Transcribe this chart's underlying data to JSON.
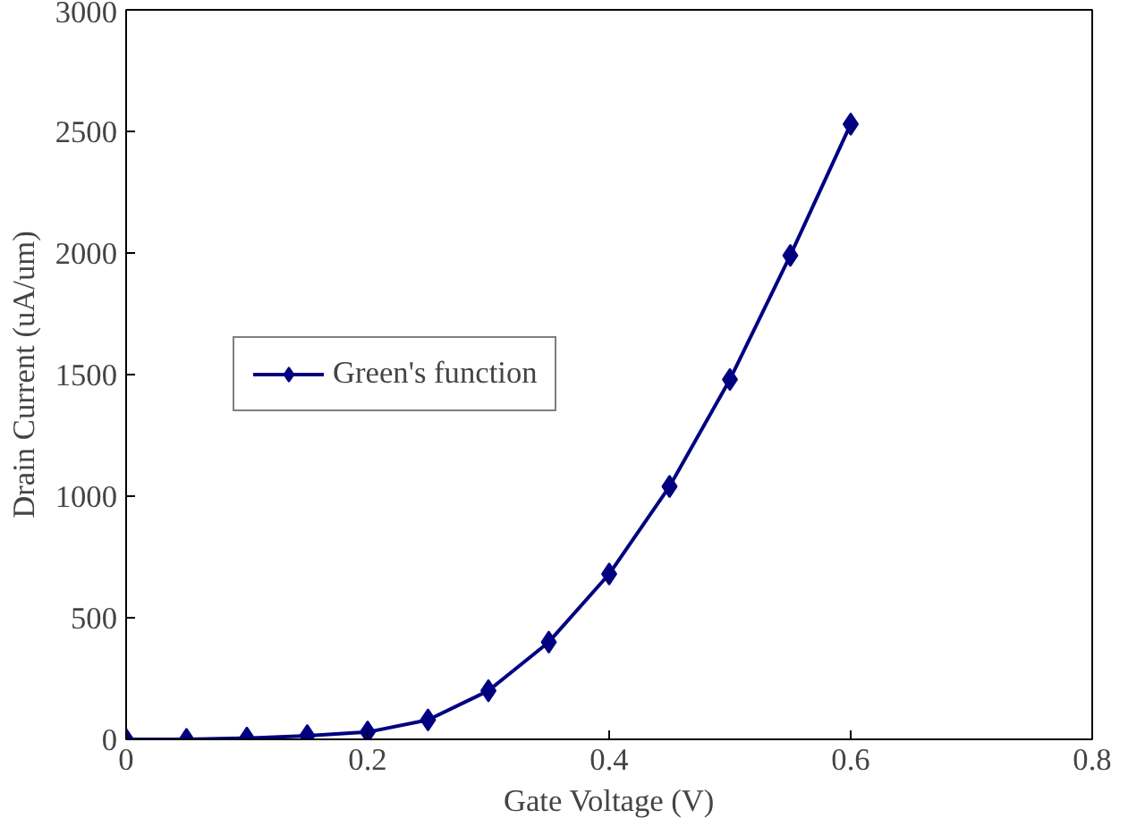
{
  "chart_data": {
    "type": "line",
    "xlabel": "Gate Voltage (V)",
    "ylabel": "Drain Current (uA/um)",
    "x": [
      0,
      0.05,
      0.1,
      0.15,
      0.2,
      0.25,
      0.3,
      0.35,
      0.4,
      0.45,
      0.5,
      0.55,
      0.6
    ],
    "series": [
      {
        "name": "Green's function",
        "color": "#000080",
        "values": [
          0,
          0,
          5,
          15,
          30,
          80,
          200,
          400,
          680,
          1040,
          1480,
          1990,
          2530
        ]
      }
    ],
    "xlim": [
      0,
      0.8
    ],
    "xticks": [
      0,
      0.2,
      0.4,
      0.6,
      0.8
    ],
    "ylim": [
      0,
      3000
    ],
    "yticks": [
      0,
      500,
      1000,
      1500,
      2000,
      2500,
      3000
    ],
    "grid": false,
    "legend": "left",
    "marker": "diamond",
    "line_style": "solid"
  }
}
